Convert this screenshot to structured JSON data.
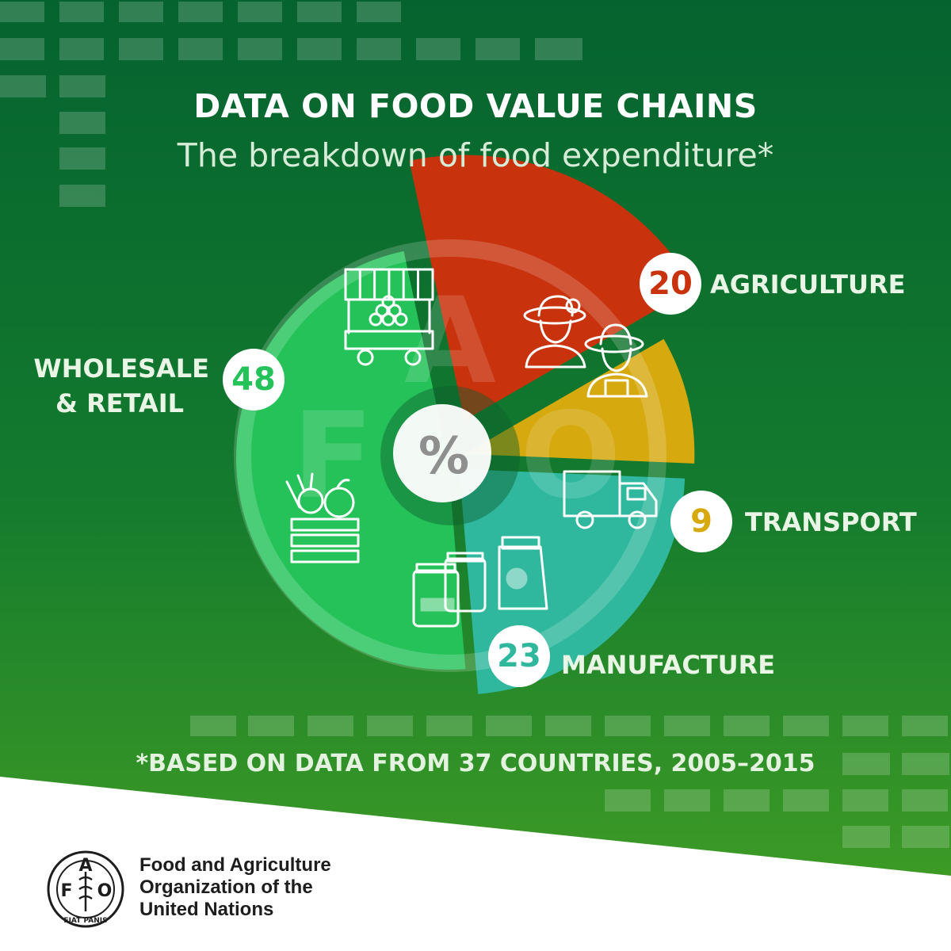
{
  "header": {
    "title": "DATA ON FOOD VALUE CHAINS",
    "subtitle": "The breakdown of food expenditure*"
  },
  "center_symbol": "%",
  "footnote": "*BASED ON DATA FROM 37 COUNTRIES, 2005–2015",
  "organization": {
    "name_lines": [
      "Food and Agriculture",
      "Organization of the",
      "United Nations"
    ],
    "logo_letters": [
      "F",
      "A",
      "O"
    ],
    "logo_motto": "FIAT PANIS"
  },
  "watermark_letters": [
    "F",
    "A",
    "O"
  ],
  "colors": {
    "background_top": "#05632f",
    "background_bottom": "#3a9a25",
    "agriculture": "#c8320d",
    "transport": "#d6a90f",
    "manufacture": "#2fb89e",
    "wholesale_retail": "#25c25a"
  },
  "chart_data": {
    "type": "pie",
    "unit": "%",
    "slices": [
      {
        "label": "AGRICULTURE",
        "value": 20,
        "color": "#c8320d",
        "icon": "farmers-icon"
      },
      {
        "label": "TRANSPORT",
        "value": 9,
        "color": "#d6a90f",
        "icon": "truck-icon"
      },
      {
        "label": "MANUFACTURE",
        "value": 23,
        "color": "#2fb89e",
        "icon": "jars-and-bag-icon"
      },
      {
        "label": "WHOLESALE & RETAIL",
        "label_lines": [
          "WHOLESALE",
          "& RETAIL"
        ],
        "value": 48,
        "color": "#25c25a",
        "icon": "market-stall-and-crate-icon"
      }
    ]
  }
}
